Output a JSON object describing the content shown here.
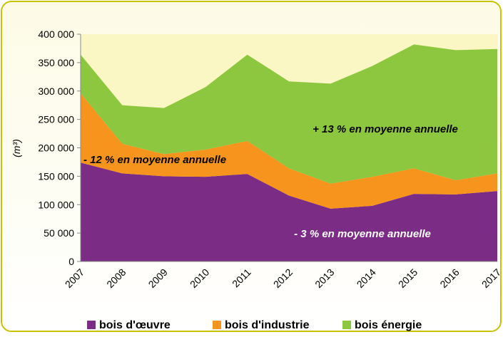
{
  "chart_data": {
    "type": "stacked_area",
    "y_label": "(m³)",
    "categories": [
      "2007",
      "2008",
      "2009",
      "2010",
      "2011",
      "2012",
      "2013",
      "2014",
      "2015",
      "2016",
      "2017"
    ],
    "series": [
      {
        "name": "bois d'œuvre",
        "color": "#7b2c85",
        "values": [
          174000,
          155000,
          150000,
          149000,
          154000,
          116000,
          93000,
          98000,
          119000,
          118000,
          124000
        ]
      },
      {
        "name": "bois d'industrie",
        "color": "#f7941d",
        "values": [
          122000,
          52000,
          39000,
          48000,
          58000,
          48000,
          44000,
          51000,
          45000,
          25000,
          31000
        ]
      },
      {
        "name": "bois énergie",
        "color": "#8dc63f",
        "values": [
          68000,
          68000,
          81000,
          110000,
          152000,
          153000,
          176000,
          195000,
          218000,
          229000,
          219000
        ]
      }
    ],
    "annotations": [
      "+ 13 % en moyenne annuelle",
      "- 12 % en moyenne annuelle",
      "- 3 % en moyenne annuelle"
    ],
    "ylim": [
      0,
      400000
    ],
    "yticks": [
      {
        "value": 0,
        "label": "0"
      },
      {
        "value": 50000,
        "label": "50 000"
      },
      {
        "value": 100000,
        "label": "100 000"
      },
      {
        "value": 150000,
        "label": "150 000"
      },
      {
        "value": 200000,
        "label": "200 000"
      },
      {
        "value": 250000,
        "label": "250 000"
      },
      {
        "value": 300000,
        "label": "300 000"
      },
      {
        "value": 350000,
        "label": "350 000"
      },
      {
        "value": 400000,
        "label": "400 000"
      }
    ],
    "legend": "bottom"
  }
}
